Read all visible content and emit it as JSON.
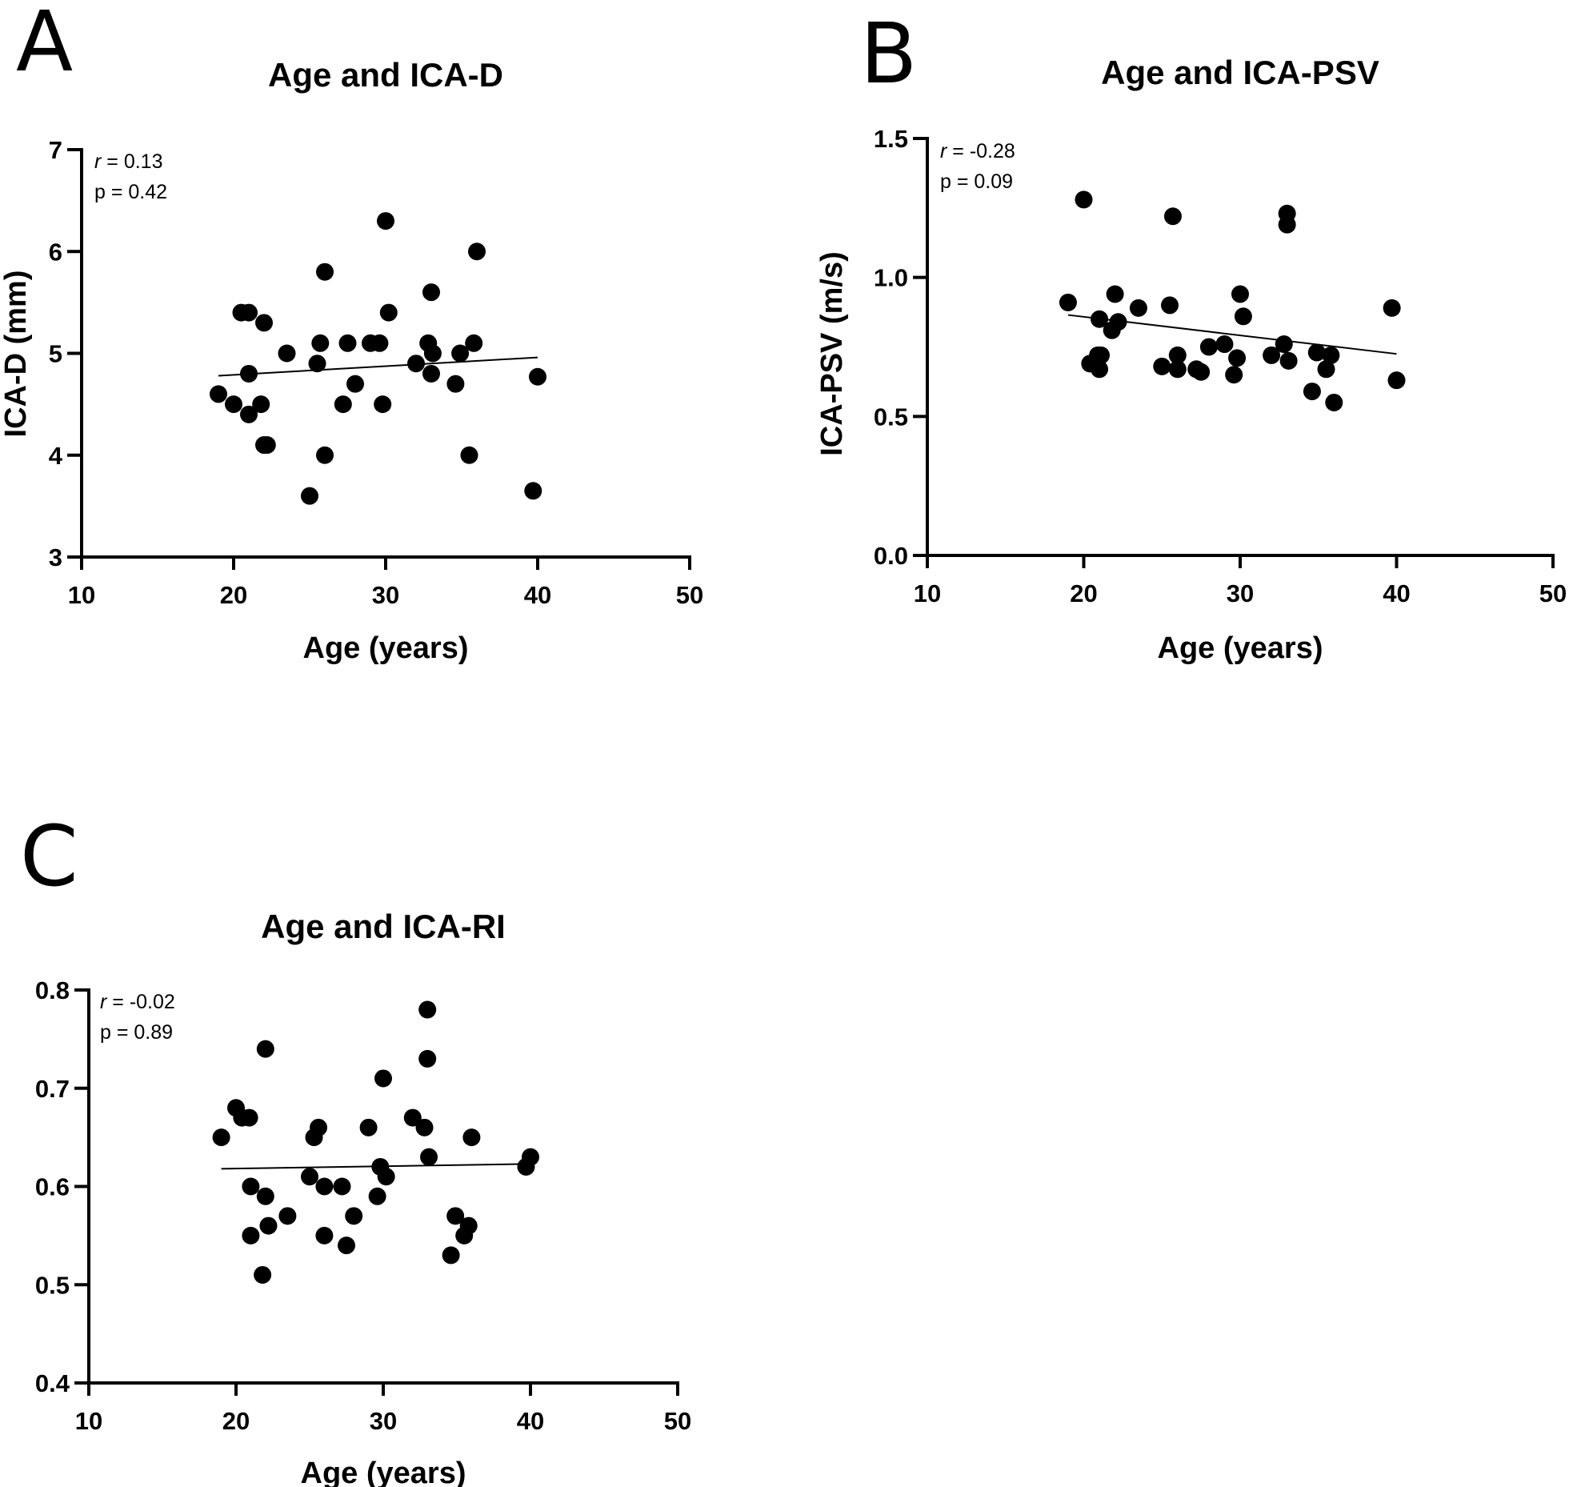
{
  "chart_data": [
    {
      "panel": "A",
      "type": "scatter",
      "title": "Age and ICA-D",
      "xlabel": "Age (years)",
      "ylabel": "ICA-D (mm)",
      "xlim": [
        10,
        50
      ],
      "ylim": [
        3,
        7
      ],
      "xticks": [
        10,
        20,
        30,
        40,
        50
      ],
      "yticks": [
        3,
        4,
        5,
        6,
        7
      ],
      "ytick_labels": [
        "3",
        "4",
        "5",
        "6",
        "7"
      ],
      "stats": {
        "r_symbol": "r",
        "r_text": " = 0.13",
        "p_text": "p = 0.42"
      },
      "fit": {
        "x": [
          19,
          40
        ],
        "y": [
          4.78,
          4.96
        ]
      },
      "points": {
        "x": [
          19,
          20,
          20.5,
          21,
          21,
          21,
          21.8,
          22,
          22,
          22.2,
          23.5,
          25,
          25.5,
          25.7,
          26,
          26,
          27.2,
          27.5,
          28,
          29,
          29.6,
          29.8,
          30,
          30.2,
          32,
          32.8,
          33,
          33,
          33.1,
          34.6,
          34.9,
          35.5,
          35.8,
          36,
          39.7,
          40
        ],
        "y": [
          4.6,
          4.5,
          5.4,
          5.4,
          4.4,
          4.8,
          4.5,
          5.3,
          4.1,
          4.1,
          5.0,
          3.6,
          4.9,
          5.1,
          5.8,
          4.0,
          4.5,
          5.1,
          4.7,
          5.1,
          5.1,
          4.5,
          6.3,
          5.4,
          4.9,
          5.1,
          5.6,
          4.8,
          5.0,
          4.7,
          5.0,
          4.0,
          5.1,
          6.0,
          3.65,
          4.77
        ]
      }
    },
    {
      "panel": "B",
      "type": "scatter",
      "title": "Age and ICA-PSV",
      "xlabel": "Age (years)",
      "ylabel": "ICA-PSV (m/s)",
      "xlim": [
        10,
        50
      ],
      "ylim": [
        0,
        1.5
      ],
      "xticks": [
        10,
        20,
        30,
        40,
        50
      ],
      "yticks": [
        0,
        0.5,
        1.0,
        1.5
      ],
      "ytick_labels": [
        "0.0",
        "0.5",
        "1.0",
        "1.5"
      ],
      "stats": {
        "r_symbol": "r",
        "r_text": " = -0.28",
        "p_text": "p = 0.09"
      },
      "fit": {
        "x": [
          19,
          40
        ],
        "y": [
          0.865,
          0.725
        ]
      },
      "points": {
        "x": [
          19,
          20,
          20.4,
          20.9,
          21,
          21,
          21.1,
          21.8,
          22,
          22.2,
          23.5,
          25,
          25.5,
          25.7,
          26,
          26,
          27.2,
          27.5,
          28,
          29,
          29.6,
          29.8,
          30,
          30.2,
          32,
          32.8,
          33,
          33,
          33.1,
          34.6,
          34.9,
          35.5,
          35.8,
          36,
          39.7,
          40
        ],
        "y": [
          0.91,
          1.28,
          0.69,
          0.72,
          0.67,
          0.85,
          0.72,
          0.81,
          0.94,
          0.84,
          0.89,
          0.68,
          0.9,
          1.22,
          0.72,
          0.67,
          0.67,
          0.66,
          0.75,
          0.76,
          0.65,
          0.71,
          0.94,
          0.86,
          0.72,
          0.76,
          1.23,
          1.19,
          0.7,
          0.59,
          0.73,
          0.67,
          0.72,
          0.55,
          0.89,
          0.63
        ]
      }
    },
    {
      "panel": "C",
      "type": "scatter",
      "title": "Age and ICA-RI",
      "xlabel": "Age (years)",
      "ylabel": "",
      "xlim": [
        10,
        50
      ],
      "ylim": [
        0.4,
        0.8
      ],
      "xticks": [
        10,
        20,
        30,
        40,
        50
      ],
      "yticks": [
        0.4,
        0.5,
        0.6,
        0.7,
        0.8
      ],
      "ytick_labels": [
        "0.4",
        "0.5",
        "0.6",
        "0.7",
        "0.8"
      ],
      "stats": {
        "r_symbol": "r",
        "r_text": " = -0.02",
        "p_text": "p = 0.89"
      },
      "fit": {
        "x": [
          19,
          40
        ],
        "y": [
          0.618,
          0.623
        ]
      },
      "points": {
        "x": [
          19,
          20,
          20.4,
          20.9,
          21,
          21,
          21.8,
          22,
          22,
          22.2,
          23.5,
          25,
          25.3,
          25.6,
          26,
          26,
          27.2,
          27.5,
          28,
          29,
          29.6,
          29.8,
          30,
          30.2,
          32,
          32.8,
          33,
          33,
          33.1,
          34.6,
          34.9,
          35.5,
          35.8,
          36,
          39.7,
          40
        ],
        "y": [
          0.65,
          0.68,
          0.67,
          0.67,
          0.55,
          0.6,
          0.51,
          0.74,
          0.59,
          0.56,
          0.57,
          0.61,
          0.65,
          0.66,
          0.6,
          0.55,
          0.6,
          0.54,
          0.57,
          0.66,
          0.59,
          0.62,
          0.71,
          0.61,
          0.67,
          0.66,
          0.78,
          0.73,
          0.63,
          0.53,
          0.57,
          0.55,
          0.56,
          0.65,
          0.62,
          0.63
        ]
      }
    }
  ]
}
